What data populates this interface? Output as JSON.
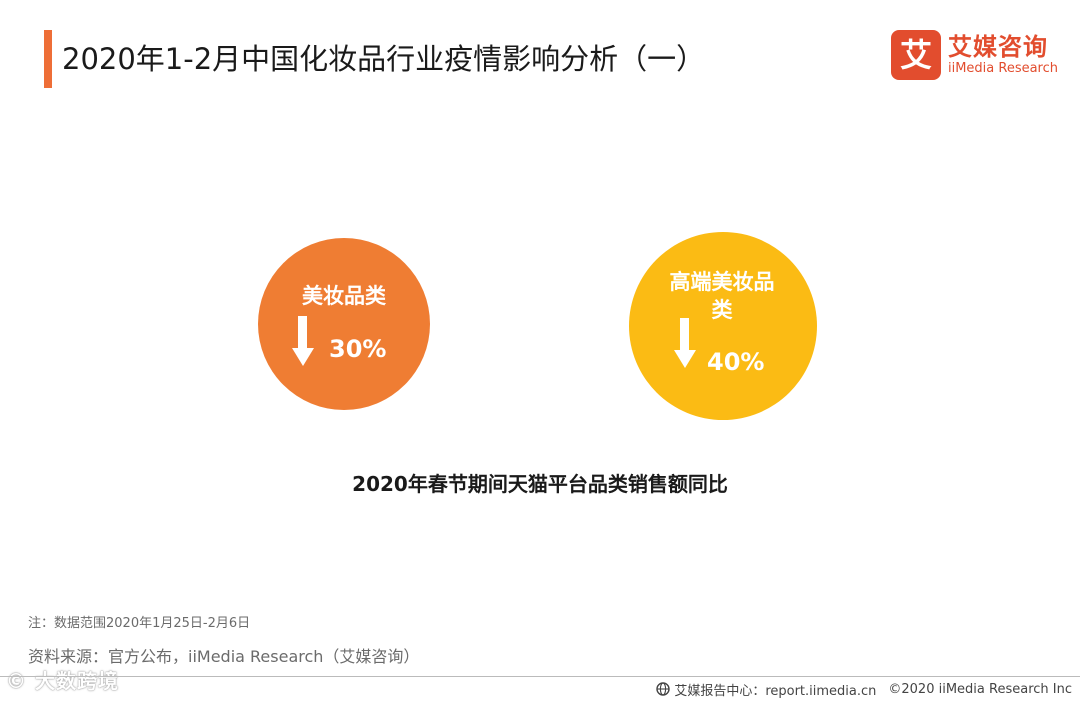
{
  "header": {
    "title": "2020年1-2月中国化妆品行业疫情影响分析（一）"
  },
  "brand": {
    "logo_char": "艾",
    "name": "艾媒咨询",
    "subtitle": "iiMedia Research"
  },
  "chart_data": {
    "type": "table",
    "title": "2020年春节期间天猫平台品类销售额同比",
    "categories": [
      "美妆品类",
      "高端美妆品类"
    ],
    "values": [
      -30,
      -40
    ],
    "unit": "%",
    "colors": [
      "#ef7d33",
      "#fbbb14"
    ],
    "value_labels": [
      "30%",
      "40%"
    ],
    "direction_icon": "arrow-down-icon"
  },
  "circles": [
    {
      "label": "美妆品类",
      "value": "30%",
      "color": "#ef7d33"
    },
    {
      "label": "高端美妆品类",
      "value": "40%",
      "color": "#fbbb14"
    }
  ],
  "notes": {
    "note": "注：数据范围2020年1月25日-2月6日",
    "source": "资料来源：官方公布，iiMedia Research（艾媒咨询）"
  },
  "watermark": {
    "text": "© 大数跨境"
  },
  "footer": {
    "report_center": "艾媒报告中心：report.iimedia.cn",
    "copyright": "©2020  iiMedia Research  Inc"
  },
  "colors": {
    "accent": "#ee6e37",
    "brand": "#e24d2e",
    "orange": "#ef7d33",
    "yellow": "#fbbb14"
  }
}
